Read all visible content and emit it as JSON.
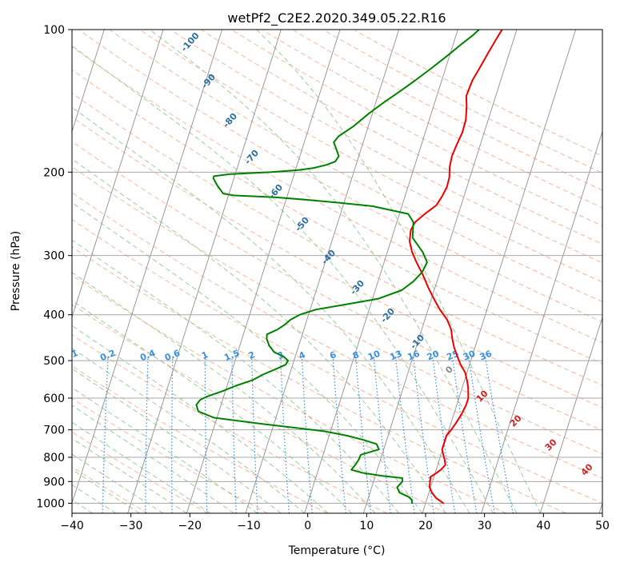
{
  "chart_data": {
    "type": "line",
    "title": "wetPf2_C2E2.2020.349.05.22.R16",
    "xlabel": "Temperature (°C)",
    "ylabel": "Pressure (hPa)",
    "xlim": [
      -40,
      50
    ],
    "ylim": [
      1050,
      100
    ],
    "y_scale": "log",
    "x_ticks": [
      "−40",
      "−30",
      "−20",
      "−10",
      "0",
      "10",
      "20",
      "30",
      "40",
      "50"
    ],
    "y_ticks": [
      "1000",
      "900",
      "800",
      "700",
      "600",
      "500",
      "400",
      "300",
      "200",
      "100"
    ],
    "grid": true,
    "colors": {
      "temperature": "#ee0000",
      "dewpoint": "#008000",
      "isotherm": "#999999",
      "dry_adiabat": "#f4a582",
      "moist_adiabat": "#8fc98f",
      "mixing_ratio": "#3a8fde",
      "dry_label": "#2b6fa0",
      "warm_label": "#cc2222"
    },
    "series": [
      {
        "points": [
          [
            23,
            1000
          ],
          [
            21.5,
            975
          ],
          [
            20.5,
            950
          ],
          [
            19.8,
            925
          ],
          [
            19.6,
            900
          ],
          [
            19.4,
            880
          ],
          [
            20.3,
            862
          ],
          [
            20.8,
            850
          ],
          [
            21.3,
            830
          ],
          [
            20.9,
            810
          ],
          [
            20.4,
            790
          ],
          [
            19.9,
            770
          ],
          [
            19.9,
            740
          ],
          [
            19.9,
            720
          ],
          [
            20.4,
            700
          ],
          [
            20.8,
            680
          ],
          [
            21.3,
            650
          ],
          [
            21.6,
            620
          ],
          [
            21.6,
            600
          ],
          [
            21.0,
            570
          ],
          [
            20.4,
            550
          ],
          [
            19.7,
            530
          ],
          [
            18.5,
            510
          ],
          [
            17.5,
            490
          ],
          [
            16.5,
            470
          ],
          [
            15.7,
            450
          ],
          [
            15.0,
            430
          ],
          [
            13.8,
            410
          ],
          [
            12.0,
            390
          ],
          [
            10.4,
            370
          ],
          [
            8.8,
            350
          ],
          [
            7.3,
            330
          ],
          [
            5.5,
            310
          ],
          [
            4.2,
            295
          ],
          [
            3.2,
            280
          ],
          [
            2.8,
            265
          ],
          [
            3.1,
            255
          ],
          [
            4.3,
            245
          ],
          [
            5.8,
            235
          ],
          [
            6.3,
            225
          ],
          [
            6.6,
            215
          ],
          [
            6.5,
            205
          ],
          [
            6.0,
            195
          ],
          [
            5.8,
            185
          ],
          [
            6.0,
            175
          ],
          [
            6.3,
            165
          ],
          [
            6.2,
            155
          ],
          [
            5.6,
            145
          ],
          [
            5.0,
            138
          ],
          [
            5.2,
            128
          ],
          [
            5.8,
            120
          ],
          [
            6.4,
            112
          ],
          [
            7.0,
            105
          ],
          [
            7.5,
            100
          ]
        ]
      },
      {
        "points": [
          [
            17.7,
            1000
          ],
          [
            17.5,
            985
          ],
          [
            16.8,
            970
          ],
          [
            15.0,
            950
          ],
          [
            14.3,
            925
          ],
          [
            14.9,
            900
          ],
          [
            14.7,
            885
          ],
          [
            11.0,
            875
          ],
          [
            7.5,
            862
          ],
          [
            5.6,
            850
          ],
          [
            6.0,
            830
          ],
          [
            6.3,
            810
          ],
          [
            6.4,
            790
          ],
          [
            9.2,
            770
          ],
          [
            8.5,
            750
          ],
          [
            6.0,
            735
          ],
          [
            3.0,
            720
          ],
          [
            -1.0,
            705
          ],
          [
            -12.0,
            680
          ],
          [
            -20.5,
            660
          ],
          [
            -23.5,
            640
          ],
          [
            -24.2,
            620
          ],
          [
            -23.8,
            605
          ],
          [
            -22.8,
            595
          ],
          [
            -20.5,
            580
          ],
          [
            -18.5,
            565
          ],
          [
            -16.0,
            550
          ],
          [
            -14.5,
            535
          ],
          [
            -12.5,
            520
          ],
          [
            -11.2,
            510
          ],
          [
            -11.0,
            500
          ],
          [
            -12.0,
            490
          ],
          [
            -13.8,
            480
          ],
          [
            -15.0,
            465
          ],
          [
            -15.8,
            450
          ],
          [
            -16.0,
            440
          ],
          [
            -14.5,
            430
          ],
          [
            -13.5,
            420
          ],
          [
            -12.8,
            410
          ],
          [
            -11.5,
            400
          ],
          [
            -9.0,
            390
          ],
          [
            -4.0,
            380
          ],
          [
            1.0,
            370
          ],
          [
            4.5,
            355
          ],
          [
            6.0,
            340
          ],
          [
            7.0,
            325
          ],
          [
            7.3,
            310
          ],
          [
            6.0,
            295
          ],
          [
            3.5,
            275
          ],
          [
            2.8,
            255
          ],
          [
            1.5,
            245
          ],
          [
            -5.0,
            236
          ],
          [
            -11.0,
            232
          ],
          [
            -16.0,
            229
          ],
          [
            -22.0,
            226
          ],
          [
            -29.0,
            224
          ],
          [
            -31.0,
            222
          ],
          [
            -32.5,
            213
          ],
          [
            -33.5,
            206
          ],
          [
            -33.5,
            204
          ],
          [
            -31.0,
            202
          ],
          [
            -24.0,
            200
          ],
          [
            -19.5,
            198
          ],
          [
            -17.0,
            196
          ],
          [
            -15.0,
            193
          ],
          [
            -13.7,
            190
          ],
          [
            -13.4,
            185
          ],
          [
            -14.3,
            178
          ],
          [
            -15.0,
            173
          ],
          [
            -14.5,
            168
          ],
          [
            -12.5,
            160
          ],
          [
            -10.5,
            150
          ],
          [
            -8.5,
            142
          ],
          [
            -6.5,
            135
          ],
          [
            -4.5,
            128
          ],
          [
            -2.5,
            121
          ],
          [
            -0.5,
            114
          ],
          [
            1.5,
            107
          ],
          [
            2.8,
            103
          ],
          [
            3.6,
            100
          ]
        ]
      }
    ],
    "dry_adiabat_labels": [
      "-100",
      "-90",
      "-80",
      "-70",
      "-60",
      "-50",
      "-40",
      "-30",
      "-20",
      "-10"
    ],
    "mixing_ratio_labels": [
      "0.1",
      "0.2",
      "0.4",
      "0.6",
      "1",
      "1.5",
      "2",
      "3",
      "4",
      "6",
      "8",
      "10",
      "13",
      "16",
      "20",
      "25",
      "30",
      "36"
    ],
    "moist_adiabat_labels": [
      "0",
      "10",
      "20",
      "30",
      "40"
    ]
  }
}
